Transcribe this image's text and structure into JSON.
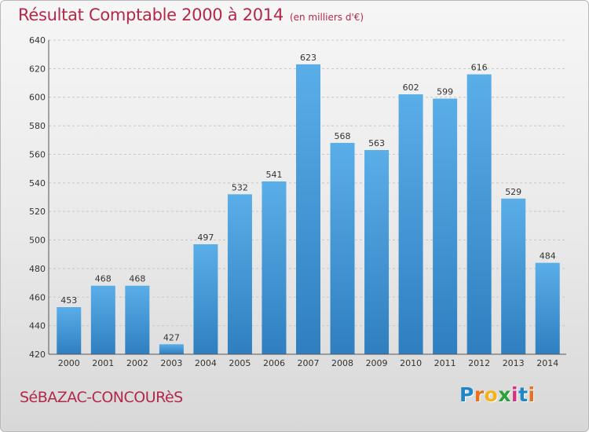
{
  "header": {
    "title": "Résultat Comptable 2000 à 2014",
    "subtitle": "(en milliers d'€)"
  },
  "footer": {
    "commune": "SéBAZAC-CONCOURèS",
    "logo": {
      "letters": [
        "P",
        "r",
        "o",
        "x",
        "i",
        "t",
        "i"
      ],
      "colors": [
        "#1f86c8",
        "#e8711c",
        "#f2b31c",
        "#2aa13c",
        "#d5317e",
        "#1f86c8",
        "#e8711c"
      ]
    }
  },
  "colors": {
    "bar_light": "#5aaee8",
    "bar_dark": "#2f7fc0",
    "grid": "#c8c8c8",
    "axis_text": "#333333",
    "title": "#b2294a"
  },
  "chart_data": {
    "type": "bar",
    "title": "Résultat Comptable 2000 à 2014",
    "xlabel": "",
    "ylabel": "",
    "categories": [
      "2000",
      "2001",
      "2002",
      "2003",
      "2004",
      "2005",
      "2006",
      "2007",
      "2008",
      "2009",
      "2010",
      "2011",
      "2012",
      "2013",
      "2014"
    ],
    "values": [
      453,
      468,
      468,
      427,
      497,
      532,
      541,
      623,
      568,
      563,
      602,
      599,
      616,
      529,
      484
    ],
    "ylim": [
      420,
      640
    ],
    "yticks": [
      420,
      440,
      460,
      480,
      500,
      520,
      540,
      560,
      580,
      600,
      620,
      640
    ],
    "grid": true
  }
}
